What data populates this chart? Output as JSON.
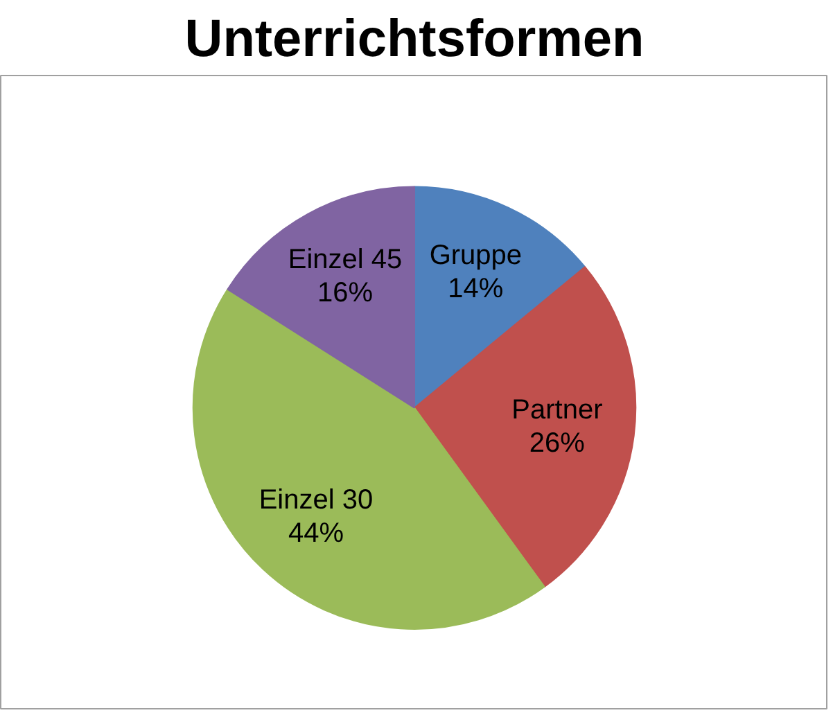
{
  "chart_data": {
    "type": "pie",
    "title": "Unterrichtsformen",
    "categories": [
      "Gruppe",
      "Partner",
      "Einzel 30",
      "Einzel 45"
    ],
    "values": [
      14,
      26,
      44,
      16
    ],
    "colors": [
      "#4f81bd",
      "#c0504d",
      "#9bbb59",
      "#8064a2"
    ],
    "value_labels": [
      "14%",
      "26%",
      "44%",
      "16%"
    ],
    "legend": false
  }
}
